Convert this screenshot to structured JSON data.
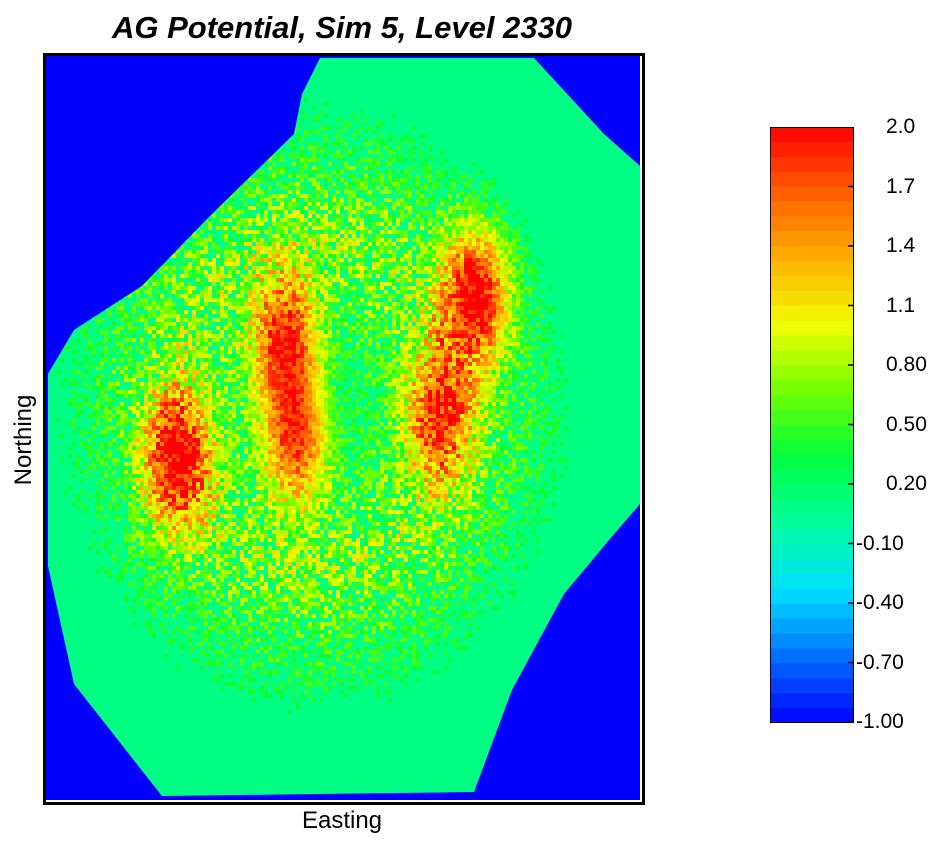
{
  "chart_data": {
    "type": "heatmap",
    "title": "AG Potential, Sim 5, Level 2330",
    "xlabel": "Easting",
    "ylabel": "Northing",
    "colorbar": {
      "min": -1.0,
      "max": 2.0,
      "tick_labels": [
        "2.0",
        "1.7",
        "1.4",
        "1.1",
        "0.80",
        "0.50",
        "0.20",
        "-0.10",
        "-0.40",
        "-0.70",
        "-1.00"
      ],
      "tick_values": [
        2.0,
        1.7,
        1.4,
        1.1,
        0.8,
        0.5,
        0.2,
        -0.1,
        -0.4,
        -0.7,
        -1.0
      ],
      "colors": [
        "#0000ff",
        "#0070ff",
        "#00e0ff",
        "#00ffa0",
        "#00ff40",
        "#70ff00",
        "#f0ff00",
        "#ffb000",
        "#ff6000",
        "#ff0000"
      ]
    },
    "background_value": -1.0,
    "domain_base_value": 0.1,
    "high_value_zones": [
      {
        "x": 0.22,
        "y": 0.54,
        "peak": 2.0
      },
      {
        "x": 0.4,
        "y": 0.38,
        "peak": 1.8
      },
      {
        "x": 0.42,
        "y": 0.51,
        "peak": 1.8
      },
      {
        "x": 0.72,
        "y": 0.32,
        "peak": 2.0
      },
      {
        "x": 0.66,
        "y": 0.48,
        "peak": 1.7
      }
    ]
  }
}
